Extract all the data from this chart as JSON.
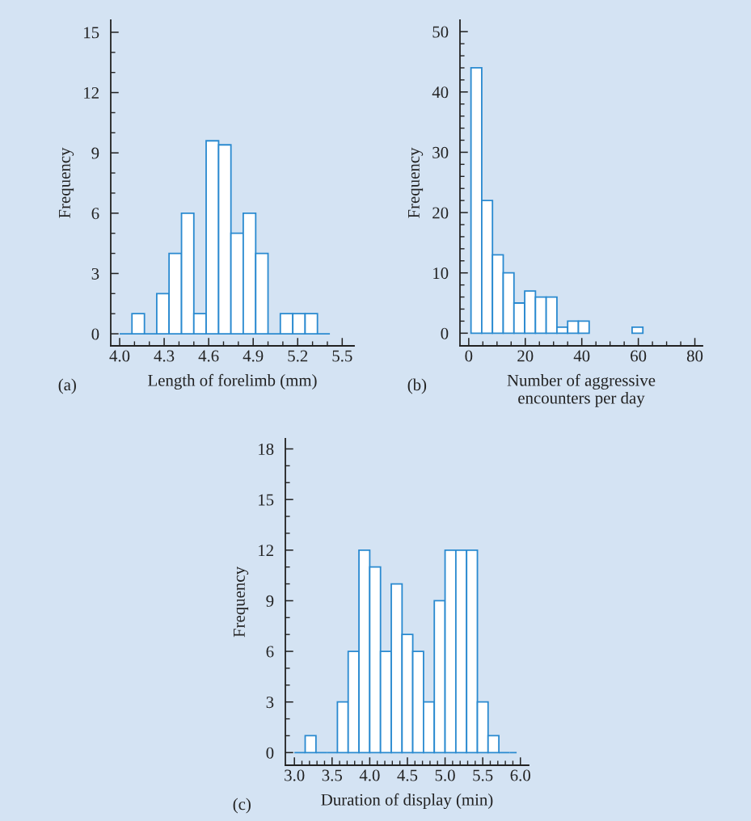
{
  "chart_data": [
    {
      "type": "histogram",
      "xlabel": "Length of forelimb (mm)",
      "ylabel": "Frequency",
      "annotations": [
        "(a)"
      ],
      "color": "#2a8ad0",
      "bins": [
        4.0,
        4.083,
        4.167,
        4.25,
        4.333,
        4.417,
        4.5,
        4.583,
        4.667,
        4.75,
        4.833,
        4.917,
        5.0,
        5.083,
        5.167,
        5.25,
        5.333,
        5.417
      ],
      "values": [
        0,
        1,
        0,
        2,
        4,
        6,
        1,
        9.6,
        9.4,
        5,
        6,
        4,
        0,
        1,
        1,
        1,
        0
      ],
      "xlim": [
        3.94,
        5.58
      ],
      "ylim": [
        -0.6,
        15.6
      ],
      "xticks": [
        {
          "value": 4.0,
          "label": "4.0"
        },
        {
          "value": 4.1,
          "label": null
        },
        {
          "value": 4.2,
          "label": null
        },
        4.3,
        {
          "value": 4.4,
          "label": null
        },
        {
          "value": 4.5,
          "label": null
        },
        4.6,
        {
          "value": 4.7,
          "label": null
        },
        {
          "value": 4.8,
          "label": null
        },
        4.9,
        {
          "value": 5.0,
          "label": null
        },
        {
          "value": 5.1,
          "label": null
        },
        5.2,
        {
          "value": 5.3,
          "label": null
        },
        {
          "value": 5.4,
          "label": null
        },
        5.5
      ],
      "yticks": [
        0,
        {
          "value": 1,
          "label": null
        },
        {
          "value": 2,
          "label": null
        },
        3,
        {
          "value": 4,
          "label": null
        },
        {
          "value": 5,
          "label": null
        },
        6,
        {
          "value": 7,
          "label": null
        },
        {
          "value": 8,
          "label": null
        },
        9,
        {
          "value": 10,
          "label": null
        },
        {
          "value": 11,
          "label": null
        },
        12,
        {
          "value": 13,
          "label": null
        },
        {
          "value": 14,
          "label": null
        },
        15
      ],
      "grid": false
    },
    {
      "type": "histogram",
      "xlabel": "Number of aggressive\nencounters per day",
      "ylabel": "Frequency",
      "annotations": [
        "(b)"
      ],
      "color": "#2a8ad0",
      "bins": [
        0.8,
        4.6,
        8.4,
        12.2,
        16.0,
        19.8,
        23.6,
        27.4,
        31.2,
        35.0,
        38.8,
        42.6,
        46.4,
        50.2,
        54.0,
        57.8,
        61.6
      ],
      "values": [
        44,
        22,
        13,
        10,
        5,
        7,
        6,
        6,
        1,
        2,
        2,
        null,
        null,
        null,
        null,
        1
      ],
      "xlim": [
        -3.1,
        82.7
      ],
      "ylim": [
        -2.1,
        51.9
      ],
      "xticks": [
        0,
        {
          "value": 5,
          "label": null
        },
        {
          "value": 10,
          "label": null
        },
        {
          "value": 15,
          "label": null
        },
        20,
        {
          "value": 25,
          "label": null
        },
        {
          "value": 30,
          "label": null
        },
        {
          "value": 35,
          "label": null
        },
        40,
        {
          "value": 45,
          "label": null
        },
        {
          "value": 50,
          "label": null
        },
        {
          "value": 55,
          "label": null
        },
        60,
        {
          "value": 65,
          "label": null
        },
        {
          "value": 70,
          "label": null
        },
        {
          "value": 75,
          "label": null
        },
        80
      ],
      "yticks": [
        0,
        {
          "value": 2,
          "label": null
        },
        {
          "value": 4,
          "label": null
        },
        {
          "value": 6,
          "label": null
        },
        {
          "value": 8,
          "label": null
        },
        10,
        {
          "value": 12,
          "label": null
        },
        {
          "value": 14,
          "label": null
        },
        {
          "value": 16,
          "label": null
        },
        {
          "value": 18,
          "label": null
        },
        20,
        {
          "value": 22,
          "label": null
        },
        {
          "value": 24,
          "label": null
        },
        {
          "value": 26,
          "label": null
        },
        {
          "value": 28,
          "label": null
        },
        30,
        {
          "value": 32,
          "label": null
        },
        {
          "value": 34,
          "label": null
        },
        {
          "value": 36,
          "label": null
        },
        {
          "value": 38,
          "label": null
        },
        40,
        {
          "value": 42,
          "label": null
        },
        {
          "value": 44,
          "label": null
        },
        {
          "value": 46,
          "label": null
        },
        {
          "value": 48,
          "label": null
        },
        50
      ],
      "grid": false
    },
    {
      "type": "histogram",
      "xlabel": "Duration of display (min)",
      "ylabel": "Frequency",
      "annotations": [
        "(c)"
      ],
      "color": "#2a8ad0",
      "bins": [
        3.0,
        3.143,
        3.286,
        3.429,
        3.571,
        3.714,
        3.857,
        4.0,
        4.143,
        4.286,
        4.429,
        4.571,
        4.714,
        4.857,
        5.0,
        5.143,
        5.286,
        5.429,
        5.571,
        5.714,
        5.857,
        5.95
      ],
      "values": [
        0,
        1,
        0,
        0,
        3,
        6,
        12,
        11,
        6,
        10,
        7,
        6,
        3,
        9,
        12,
        12,
        12,
        3,
        1,
        0,
        0
      ],
      "xlim": [
        2.88,
        6.11
      ],
      "ylim": [
        -0.75,
        18.6
      ],
      "xticks": [
        {
          "value": 3.0,
          "label": "3.0"
        },
        {
          "value": 3.1,
          "label": null
        },
        {
          "value": 3.2,
          "label": null
        },
        {
          "value": 3.3,
          "label": null
        },
        {
          "value": 3.4,
          "label": null
        },
        3.5,
        {
          "value": 3.6,
          "label": null
        },
        {
          "value": 3.7,
          "label": null
        },
        {
          "value": 3.8,
          "label": null
        },
        {
          "value": 3.9,
          "label": null
        },
        {
          "value": 4.0,
          "label": "4.0"
        },
        {
          "value": 4.1,
          "label": null
        },
        {
          "value": 4.2,
          "label": null
        },
        {
          "value": 4.3,
          "label": null
        },
        {
          "value": 4.4,
          "label": null
        },
        4.5,
        {
          "value": 4.6,
          "label": null
        },
        {
          "value": 4.7,
          "label": null
        },
        {
          "value": 4.8,
          "label": null
        },
        {
          "value": 4.9,
          "label": null
        },
        {
          "value": 5.0,
          "label": "5.0"
        },
        {
          "value": 5.1,
          "label": null
        },
        {
          "value": 5.2,
          "label": null
        },
        {
          "value": 5.3,
          "label": null
        },
        {
          "value": 5.4,
          "label": null
        },
        5.5,
        {
          "value": 5.6,
          "label": null
        },
        {
          "value": 5.7,
          "label": null
        },
        {
          "value": 5.8,
          "label": null
        },
        {
          "value": 5.9,
          "label": null
        },
        {
          "value": 6.0,
          "label": "6.0"
        }
      ],
      "yticks": [
        0,
        {
          "value": 1,
          "label": null
        },
        {
          "value": 2,
          "label": null
        },
        3,
        {
          "value": 4,
          "label": null
        },
        {
          "value": 5,
          "label": null
        },
        6,
        {
          "value": 7,
          "label": null
        },
        {
          "value": 8,
          "label": null
        },
        9,
        {
          "value": 10,
          "label": null
        },
        {
          "value": 11,
          "label": null
        },
        12,
        {
          "value": 13,
          "label": null
        },
        {
          "value": 14,
          "label": null
        },
        15,
        {
          "value": 16,
          "label": null
        },
        {
          "value": 17,
          "label": null
        },
        18
      ],
      "grid": false
    }
  ]
}
